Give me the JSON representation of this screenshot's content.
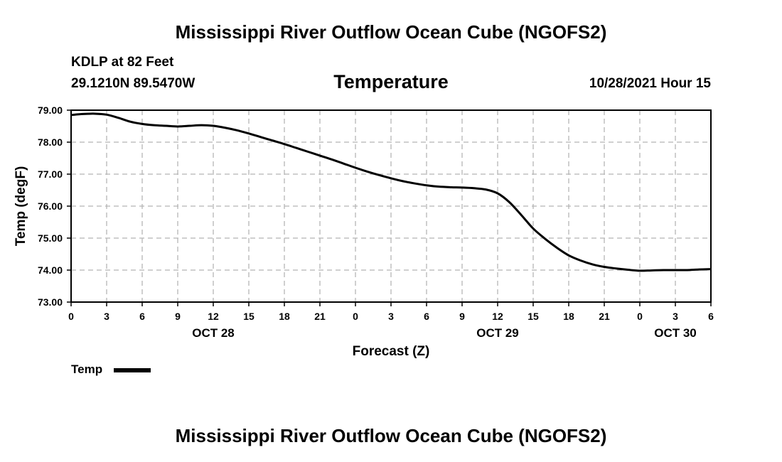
{
  "header": {
    "main_title": "Mississippi River Outflow Ocean Cube (NGOFS2)",
    "station": "KDLP at 82 Feet",
    "coords": "29.1210N  89.5470W",
    "chart_title": "Temperature",
    "timestamp": "10/28/2021 Hour 15"
  },
  "legend": {
    "label": "Temp"
  },
  "footer": {
    "title": "Mississippi River Outflow Ocean Cube (NGOFS2)"
  },
  "chart_data": {
    "type": "line",
    "title": "Temperature",
    "xlabel": "Forecast (Z)",
    "ylabel": "Temp (degF)",
    "ylim": [
      73.0,
      79.0
    ],
    "xlim": [
      0,
      54
    ],
    "grid": true,
    "y_ticks": [
      "73.00",
      "74.00",
      "75.00",
      "76.00",
      "77.00",
      "78.00",
      "79.00"
    ],
    "x_ticks": [
      "0",
      "3",
      "6",
      "9",
      "12",
      "15",
      "18",
      "21",
      "0",
      "3",
      "6",
      "9",
      "12",
      "15",
      "18",
      "21",
      "0",
      "3",
      "6"
    ],
    "x_tick_hours": [
      0,
      3,
      6,
      9,
      12,
      15,
      18,
      21,
      24,
      27,
      30,
      33,
      36,
      39,
      42,
      45,
      48,
      51,
      54
    ],
    "date_labels": [
      {
        "label": "OCT 28",
        "hour": 12
      },
      {
        "label": "OCT 29",
        "hour": 36
      },
      {
        "label": "OCT 30",
        "hour": 51
      }
    ],
    "series": [
      {
        "name": "Temp",
        "color": "#000000",
        "x": [
          0,
          1,
          2,
          3,
          4,
          5,
          6,
          7,
          8,
          9,
          10,
          11,
          12,
          13,
          14,
          15,
          16,
          17,
          18,
          19,
          20,
          21,
          22,
          23,
          24,
          25,
          26,
          27,
          28,
          29,
          30,
          31,
          32,
          33,
          34,
          35,
          36,
          37,
          38,
          39,
          40,
          41,
          42,
          43,
          44,
          45,
          46,
          47,
          48,
          49,
          50,
          51,
          52,
          53,
          54
        ],
        "values": [
          78.85,
          78.88,
          78.89,
          78.86,
          78.76,
          78.64,
          78.57,
          78.53,
          78.51,
          78.49,
          78.51,
          78.53,
          78.51,
          78.45,
          78.37,
          78.27,
          78.16,
          78.05,
          77.94,
          77.82,
          77.7,
          77.58,
          77.46,
          77.33,
          77.2,
          77.08,
          76.97,
          76.87,
          76.78,
          76.71,
          76.65,
          76.61,
          76.59,
          76.58,
          76.56,
          76.52,
          76.4,
          76.12,
          75.72,
          75.3,
          74.98,
          74.7,
          74.46,
          74.3,
          74.18,
          74.1,
          74.05,
          74.01,
          73.98,
          73.99,
          74.0,
          74.0,
          74.0,
          74.02,
          74.03
        ]
      }
    ]
  }
}
